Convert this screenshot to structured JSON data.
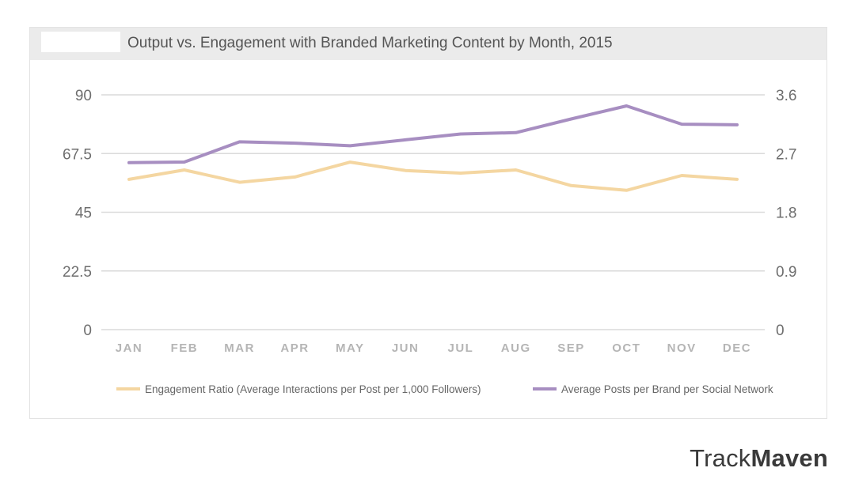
{
  "title": "Output vs. Engagement with Branded Marketing Content by Month, 2015",
  "brand": {
    "part1": "Track",
    "part2": "Maven"
  },
  "colors": {
    "engagement": "#f4d6a1",
    "posts": "#a78ec1",
    "grid": "#dadada",
    "axis_text": "#6e6e6e",
    "month_text": "#b5b5b5"
  },
  "chart_data": {
    "type": "line",
    "title": "Output vs. Engagement with Branded Marketing Content by Month, 2015",
    "categories": [
      "JAN",
      "FEB",
      "MAR",
      "APR",
      "MAY",
      "JUN",
      "JUL",
      "AUG",
      "SEP",
      "OCT",
      "NOV",
      "DEC"
    ],
    "y_left": {
      "ticks": [
        "90",
        "67.5",
        "45",
        "22.5",
        "0"
      ],
      "ylim": [
        0,
        90
      ]
    },
    "y_right": {
      "ticks": [
        "3.6",
        "2.7",
        "1.8",
        "0.9",
        "0"
      ],
      "ylim": [
        0,
        3.6
      ]
    },
    "grid": true,
    "legend_position": "bottom",
    "series": [
      {
        "name": "Engagement Ratio (Average Interactions per Post per 1,000 Followers)",
        "axis": "left",
        "color": "#f4d6a1",
        "values": [
          57.6,
          61.2,
          56.5,
          58.5,
          64.2,
          61.0,
          60.0,
          61.2,
          55.2,
          53.4,
          59.1,
          57.6
        ]
      },
      {
        "name": "Average Posts per Brand per Social Network",
        "axis": "right",
        "color": "#a78ec1",
        "values": [
          2.56,
          2.57,
          2.88,
          2.86,
          2.82,
          2.91,
          3.0,
          3.02,
          3.23,
          3.43,
          3.15,
          3.14
        ]
      }
    ]
  }
}
